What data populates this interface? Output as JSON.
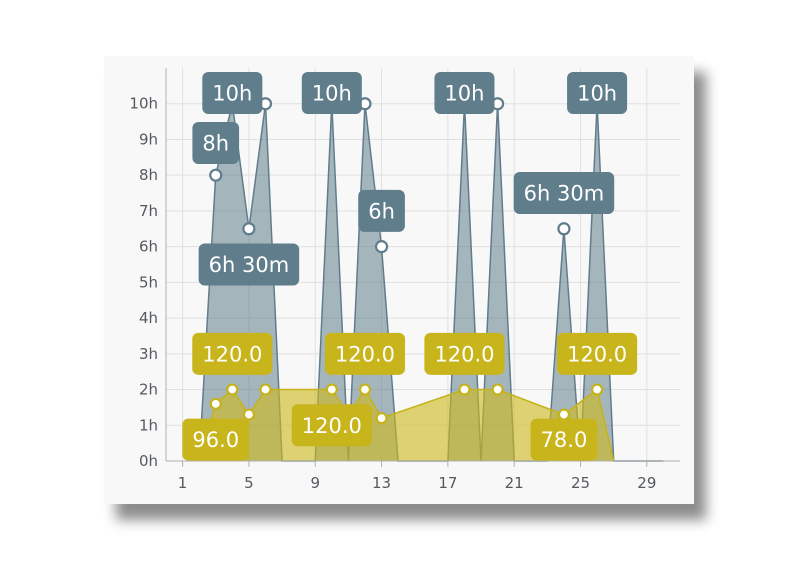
{
  "colors": {
    "sleep_fill": "rgba(96,125,139,0.55)",
    "sleep_line": "#607d8b",
    "sleep_label": "#607d8b",
    "rating_fill": "rgba(205,185,30,0.62)",
    "rating_line": "#c6b21a",
    "rating_label": "#c8b41b",
    "grid": "#e0e0e0",
    "axis": "#b0b0b0",
    "point_fill": "#ffffff"
  },
  "chart_data": {
    "type": "area",
    "xlim": [
      0,
      31
    ],
    "ylim": [
      0,
      11
    ],
    "x_ticks": [
      1,
      5,
      9,
      13,
      17,
      21,
      25,
      29
    ],
    "y_ticks": [
      "0h",
      "1h",
      "2h",
      "3h",
      "4h",
      "5h",
      "6h",
      "7h",
      "8h",
      "9h",
      "10h"
    ],
    "grid": true,
    "series": [
      {
        "points": [
          {
            "x": 2,
            "y": 0
          },
          {
            "x": 3,
            "y": 8
          },
          {
            "x": 4,
            "y": 10
          },
          {
            "x": 5,
            "y": 6.5
          },
          {
            "x": 6,
            "y": 10
          },
          {
            "x": 7,
            "y": 0
          },
          {
            "x": 9,
            "y": 0
          },
          {
            "x": 10,
            "y": 10
          },
          {
            "x": 11,
            "y": 0
          },
          {
            "x": 12,
            "y": 10
          },
          {
            "x": 13,
            "y": 6
          },
          {
            "x": 14,
            "y": 0
          },
          {
            "x": 17,
            "y": 0
          },
          {
            "x": 18,
            "y": 10
          },
          {
            "x": 19,
            "y": 0
          },
          {
            "x": 20,
            "y": 10
          },
          {
            "x": 21,
            "y": 0
          },
          {
            "x": 23,
            "y": 0
          },
          {
            "x": 24,
            "y": 6.5
          },
          {
            "x": 25,
            "y": 0
          },
          {
            "x": 26,
            "y": 10
          },
          {
            "x": 27,
            "y": 0
          },
          {
            "x": 30,
            "y": 0
          }
        ],
        "markers": [
          {
            "x": 3,
            "y": 8
          },
          {
            "x": 5,
            "y": 6.5
          },
          {
            "x": 6,
            "y": 10
          },
          {
            "x": 12,
            "y": 10
          },
          {
            "x": 13,
            "y": 6
          },
          {
            "x": 20,
            "y": 10
          },
          {
            "x": 24,
            "y": 6.5
          }
        ]
      },
      {
        "points": [
          {
            "x": 2,
            "y": 0
          },
          {
            "x": 3,
            "y": 1.6
          },
          {
            "x": 4,
            "y": 2
          },
          {
            "x": 5,
            "y": 1.3
          },
          {
            "x": 6,
            "y": 2
          },
          {
            "x": 7,
            "y": 2
          },
          {
            "x": 10,
            "y": 2
          },
          {
            "x": 11,
            "y": 1.3
          },
          {
            "x": 12,
            "y": 2
          },
          {
            "x": 13,
            "y": 1.2
          },
          {
            "x": 18,
            "y": 2
          },
          {
            "x": 20,
            "y": 2
          },
          {
            "x": 24,
            "y": 1.3
          },
          {
            "x": 26,
            "y": 2
          },
          {
            "x": 27,
            "y": 0
          }
        ],
        "markers": [
          {
            "x": 3,
            "y": 1.6
          },
          {
            "x": 4,
            "y": 2
          },
          {
            "x": 5,
            "y": 1.3
          },
          {
            "x": 6,
            "y": 2
          },
          {
            "x": 10,
            "y": 2
          },
          {
            "x": 12,
            "y": 2
          },
          {
            "x": 13,
            "y": 1.2
          },
          {
            "x": 18,
            "y": 2
          },
          {
            "x": 20,
            "y": 2
          },
          {
            "x": 24,
            "y": 1.3
          },
          {
            "x": 26,
            "y": 2
          }
        ]
      }
    ],
    "labels": {
      "sleep": [
        {
          "text": "10h",
          "x": 4,
          "y": 10.3
        },
        {
          "text": "8h",
          "x": 3,
          "y": 8.9
        },
        {
          "text": "6h 30m",
          "x": 5,
          "y": 5.5
        },
        {
          "text": "10h",
          "x": 10,
          "y": 10.3
        },
        {
          "text": "6h",
          "x": 13,
          "y": 7
        },
        {
          "text": "10h",
          "x": 18,
          "y": 10.3
        },
        {
          "text": "6h 30m",
          "x": 24,
          "y": 7.5
        },
        {
          "text": "10h",
          "x": 26,
          "y": 10.3
        }
      ],
      "rating": [
        {
          "text": "120.0",
          "x": 4,
          "y": 3.0
        },
        {
          "text": "96.0",
          "x": 3,
          "y": 0.6
        },
        {
          "text": "120.0",
          "x": 12,
          "y": 3.0
        },
        {
          "text": "120.0",
          "x": 10,
          "y": 1.0
        },
        {
          "text": "120.0",
          "x": 18,
          "y": 3.0
        },
        {
          "text": "78.0",
          "x": 24,
          "y": 0.6
        },
        {
          "text": "120.0",
          "x": 26,
          "y": 3.0
        }
      ]
    }
  }
}
